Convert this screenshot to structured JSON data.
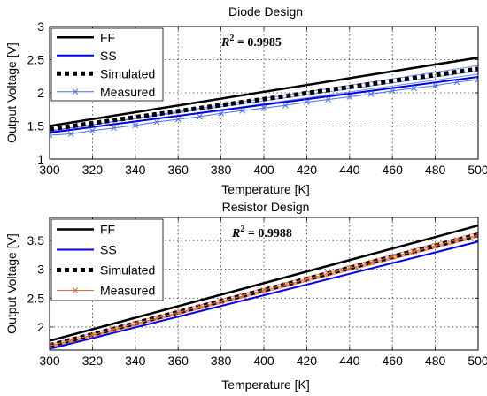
{
  "chart_data": [
    {
      "type": "line",
      "title": "Diode Design",
      "xlabel": "Temperature [K]",
      "ylabel": "Output Voltage [V]",
      "xlim": [
        300,
        500
      ],
      "ylim": [
        1,
        3
      ],
      "xticks": [
        "300",
        "320",
        "340",
        "360",
        "380",
        "400",
        "420",
        "440",
        "460",
        "480",
        "500"
      ],
      "yticks": [
        "1",
        "1.5",
        "2",
        "2.5",
        "3"
      ],
      "grid": true,
      "legend_position": "top-left",
      "annotation": {
        "prefix": "R",
        "superscript": "2",
        "text": " = 0.9985"
      },
      "series": [
        {
          "name": "FF",
          "color": "#000000",
          "style": "solid",
          "width": 2.5,
          "x": [
            300,
            500
          ],
          "y": [
            1.5,
            2.53
          ]
        },
        {
          "name": "SS",
          "color": "#0000e6",
          "style": "solid",
          "width": 2,
          "x": [
            300,
            500
          ],
          "y": [
            1.4,
            2.24
          ]
        },
        {
          "name": "Simulated",
          "color": "#000000",
          "style": "dotted",
          "width": 5,
          "x": [
            300,
            500
          ],
          "y": [
            1.45,
            2.36
          ]
        },
        {
          "name": "Measured",
          "color": "#4a6ee8",
          "style": "marker",
          "width": 1,
          "x": [
            300,
            310,
            320,
            330,
            340,
            350,
            360,
            370,
            380,
            390,
            400,
            410,
            420,
            430,
            440,
            450,
            460,
            470,
            480,
            490,
            500
          ],
          "y": [
            1.36,
            1.38,
            1.43,
            1.47,
            1.51,
            1.56,
            1.6,
            1.64,
            1.69,
            1.73,
            1.77,
            1.81,
            1.86,
            1.9,
            1.94,
            1.98,
            2.03,
            2.07,
            2.11,
            2.16,
            2.2
          ]
        }
      ],
      "extra_measured_lines": [
        {
          "x": [
            300,
            500
          ],
          "y": [
            1.42,
            2.41
          ]
        },
        {
          "x": [
            300,
            500
          ],
          "y": [
            1.39,
            2.28
          ]
        },
        {
          "x": [
            300,
            500
          ],
          "y": [
            1.43,
            2.33
          ]
        }
      ]
    },
    {
      "type": "line",
      "title": "Resistor Design",
      "xlabel": "Temperature [K]",
      "ylabel": "Output Voltage [V]",
      "xlim": [
        300,
        500
      ],
      "ylim": [
        1.6,
        3.9
      ],
      "xticks": [
        "300",
        "320",
        "340",
        "360",
        "380",
        "400",
        "420",
        "440",
        "460",
        "480",
        "500"
      ],
      "yticks": [
        "2",
        "2.5",
        "3",
        "3.5"
      ],
      "grid": true,
      "legend_position": "top-left",
      "annotation": {
        "prefix": "R",
        "superscript": "2",
        "text": " = 0.9988"
      },
      "series": [
        {
          "name": "FF",
          "color": "#000000",
          "style": "solid",
          "width": 2.5,
          "x": [
            300,
            500
          ],
          "y": [
            1.76,
            3.76
          ]
        },
        {
          "name": "SS",
          "color": "#0000e6",
          "style": "solid",
          "width": 2,
          "x": [
            300,
            500
          ],
          "y": [
            1.62,
            3.48
          ]
        },
        {
          "name": "Simulated",
          "color": "#000000",
          "style": "dotted",
          "width": 5,
          "x": [
            300,
            500
          ],
          "y": [
            1.68,
            3.6
          ]
        },
        {
          "name": "Measured",
          "color": "#e0683a",
          "style": "marker",
          "width": 1,
          "x": [
            300,
            310,
            320,
            330,
            340,
            350,
            360,
            370,
            380,
            390,
            400,
            410,
            420,
            430,
            440,
            450,
            460,
            470,
            480,
            490,
            500
          ],
          "y": [
            1.67,
            1.77,
            1.86,
            1.96,
            2.06,
            2.15,
            2.25,
            2.35,
            2.44,
            2.54,
            2.64,
            2.73,
            2.83,
            2.93,
            3.02,
            3.12,
            3.22,
            3.31,
            3.41,
            3.51,
            3.6
          ]
        }
      ],
      "extra_measured_lines": [
        {
          "x": [
            300,
            500
          ],
          "y": [
            1.64,
            3.56
          ]
        },
        {
          "x": [
            300,
            500
          ],
          "y": [
            1.7,
            3.64
          ]
        },
        {
          "x": [
            300,
            500
          ],
          "y": [
            1.66,
            3.58
          ]
        }
      ]
    }
  ]
}
